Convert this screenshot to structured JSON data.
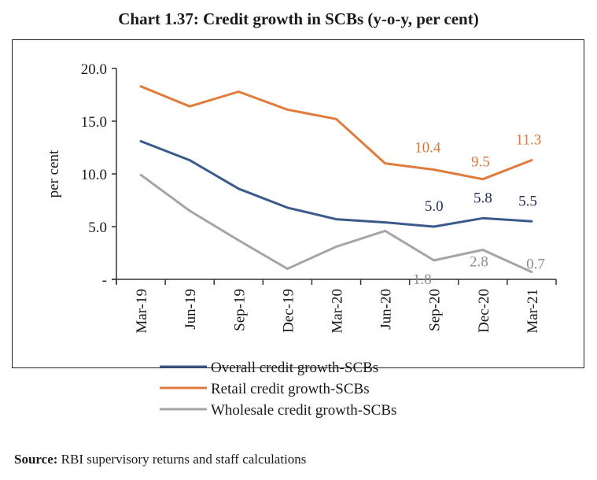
{
  "chart_data": {
    "type": "line",
    "title": "Chart 1.37: Credit growth in SCBs (y-o-y, per cent)",
    "xlabel": "",
    "ylabel": "per cent",
    "ylim": [
      0,
      20
    ],
    "yticks": [
      0,
      5,
      10,
      15,
      20
    ],
    "ytick_labels": [
      "-",
      "5.0",
      "10.0",
      "15.0",
      "20.0"
    ],
    "categories": [
      "Mar-19",
      "Jun-19",
      "Sep-19",
      "Dec-19",
      "Mar-20",
      "Jun-20",
      "Sep-20",
      "Dec-20",
      "Mar-21"
    ],
    "grid": false,
    "legend_position": "bottom-center",
    "series": [
      {
        "name": "Overall credit growth-SCBs",
        "color": "#3B5A8C",
        "label_color": "#1F2A5A",
        "values": [
          13.1,
          11.3,
          8.6,
          6.8,
          5.7,
          5.4,
          5.0,
          5.8,
          5.5
        ],
        "labeled_points": [
          6,
          7,
          8
        ]
      },
      {
        "name": "Retail credit growth-SCBs",
        "color": "#E07B3C",
        "label_color": "#D9783A",
        "values": [
          18.3,
          16.4,
          17.8,
          16.1,
          15.2,
          11.0,
          10.4,
          9.5,
          11.3
        ],
        "labeled_points": [
          6,
          7,
          8
        ]
      },
      {
        "name": "Wholesale credit growth-SCBs",
        "color": "#A5A5A5",
        "label_color": "#8C8C8C",
        "values": [
          9.9,
          6.5,
          3.7,
          1.0,
          3.1,
          4.6,
          1.8,
          2.8,
          0.7
        ],
        "labeled_points": [
          6,
          7,
          8
        ]
      }
    ]
  },
  "source": {
    "label": "Source:",
    "text": " RBI supervisory returns and staff calculations"
  }
}
